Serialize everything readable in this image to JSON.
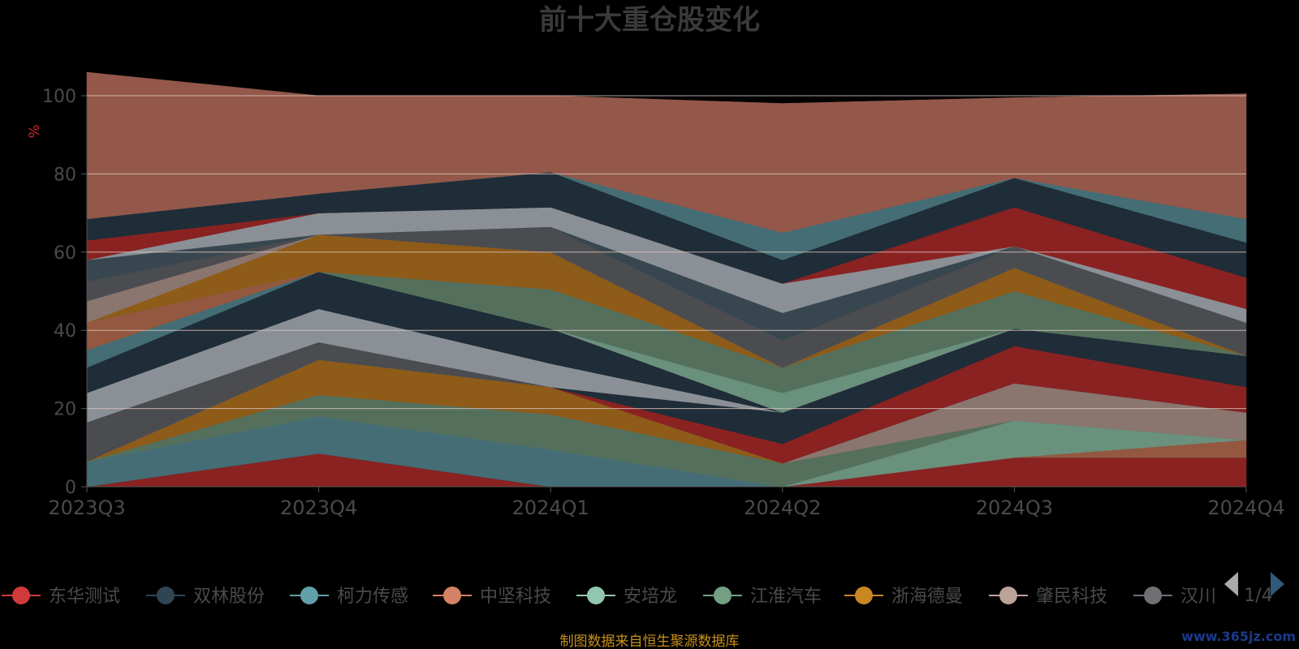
{
  "chart_data": {
    "type": "area",
    "stacked": true,
    "title": "前十大重仓股变化",
    "ylabel": "%",
    "ylim": [
      0,
      100
    ],
    "y_ticks": [
      "0",
      "20",
      "40",
      "60",
      "80",
      "100"
    ],
    "categories": [
      "2023Q3",
      "2023Q4",
      "2024Q1",
      "2024Q2",
      "2024Q3",
      "2024Q4"
    ],
    "grid": true,
    "legend_position": "bottom",
    "legend_page": "1/4",
    "visible_legend": [
      {
        "name": "东华测试",
        "color": "#d03a3a"
      },
      {
        "name": "双林股份",
        "color": "#2f4554"
      },
      {
        "name": "柯力传感",
        "color": "#61a0a8"
      },
      {
        "name": "中坚科技",
        "color": "#d48265"
      },
      {
        "name": "安培龙",
        "color": "#91c7ae"
      },
      {
        "name": "江淮汽车",
        "color": "#749f83"
      },
      {
        "name": "浙海德曼",
        "color": "#ca8622"
      },
      {
        "name": "肇民科技",
        "color": "#bda29a"
      },
      {
        "name": "汉川",
        "color": "#6e7074"
      }
    ],
    "series": [
      {
        "color": "#8a2222",
        "values": [
          0,
          8.5,
          0,
          0,
          7.5,
          7.5
        ]
      },
      {
        "color": "#1f2d38",
        "values": [
          0,
          0,
          0,
          0,
          0,
          0
        ]
      },
      {
        "color": "#446d75",
        "values": [
          6.5,
          9.5,
          9.5,
          0,
          0,
          0
        ]
      },
      {
        "color": "#93583f",
        "values": [
          0,
          0,
          0,
          0,
          0,
          4.5
        ]
      },
      {
        "color": "#6a907e",
        "values": [
          0,
          0,
          0,
          0,
          9.5,
          0
        ]
      },
      {
        "color": "#54705d",
        "values": [
          0,
          5.5,
          9,
          6,
          0,
          0
        ]
      },
      {
        "color": "#8e5b18",
        "values": [
          0,
          9,
          7,
          0,
          0,
          0
        ]
      },
      {
        "color": "#8a766f",
        "values": [
          0,
          0,
          0,
          0,
          9.5,
          7
        ]
      },
      {
        "color": "#4a4c50",
        "values": [
          0,
          4.5,
          0,
          0,
          0,
          0
        ]
      },
      {
        "color": "#8a2222",
        "values": [
          0,
          0,
          0,
          5,
          9.5,
          6.5
        ]
      },
      {
        "color": "#1f2d38",
        "values": [
          0,
          0,
          0,
          8,
          4.5,
          8
        ]
      },
      {
        "color": "#4a4c50",
        "values": [
          10,
          0,
          0,
          0,
          0,
          0
        ]
      },
      {
        "color": "#8a9096",
        "values": [
          7.5,
          8.5,
          6,
          0,
          0,
          0
        ]
      },
      {
        "color": "#1f2d38",
        "values": [
          6.5,
          9.5,
          9,
          0,
          0,
          0
        ]
      },
      {
        "color": "#446d75",
        "values": [
          4.5,
          0,
          0,
          0,
          0,
          0
        ]
      },
      {
        "color": "#93583f",
        "values": [
          7,
          0,
          0,
          0,
          0,
          0
        ]
      },
      {
        "color": "#6a907e",
        "values": [
          0,
          0,
          0,
          5,
          0,
          0
        ]
      },
      {
        "color": "#54705d",
        "values": [
          0,
          0,
          10,
          6.5,
          9.5,
          0
        ]
      },
      {
        "color": "#8e5b18",
        "values": [
          0,
          9.5,
          9.5,
          0,
          6,
          0
        ]
      },
      {
        "color": "#8a766f",
        "values": [
          5.5,
          0,
          0,
          0,
          0,
          0
        ]
      },
      {
        "color": "#4a4c50",
        "values": [
          5,
          0,
          6.5,
          7,
          5.5,
          8.5
        ]
      },
      {
        "color": "#38474f",
        "values": [
          5.5,
          0,
          0,
          7,
          0,
          0
        ]
      },
      {
        "color": "#8a9096",
        "values": [
          0,
          5.5,
          5,
          7.5,
          0,
          3.5
        ]
      },
      {
        "color": "#8a2222",
        "values": [
          5,
          0,
          0,
          0,
          10,
          8
        ]
      },
      {
        "color": "#1f2d38",
        "values": [
          5.5,
          5,
          9,
          6,
          7.5,
          9
        ]
      },
      {
        "color": "#446d75",
        "values": [
          0,
          0,
          0,
          7,
          0,
          6
        ]
      },
      {
        "color": "#93584a",
        "values": [
          37.5,
          25,
          19.5,
          33,
          20.5,
          32
        ]
      }
    ]
  },
  "footer": {
    "source": "制图数据来自恒生聚源数据库",
    "watermark": "www.365jz.com"
  },
  "colors": {
    "background": "#000000",
    "title": "#3a3a3a",
    "axis_text": "#4a4a4a",
    "unit": "#cc2222",
    "source": "#c8901a"
  }
}
